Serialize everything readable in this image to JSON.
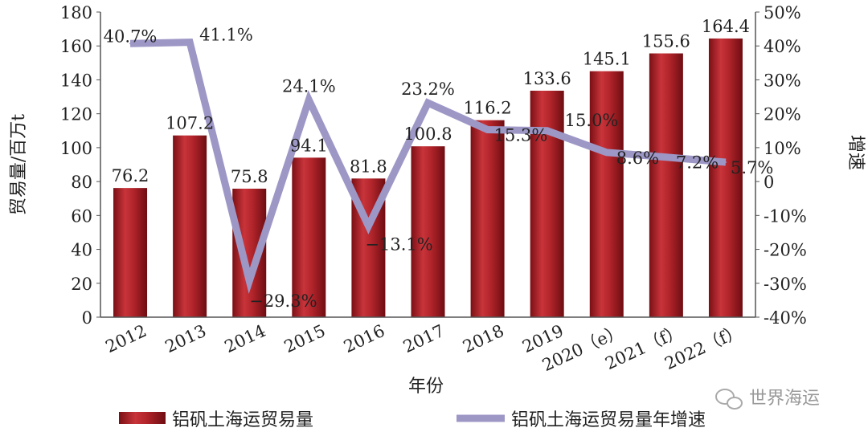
{
  "chart_data": {
    "type": "bar+line",
    "categories": [
      "2012",
      "2013",
      "2014",
      "2015",
      "2016",
      "2017",
      "2018",
      "2019",
      "2020（e）",
      "2021（f）",
      "2022（f）"
    ],
    "series": [
      {
        "name": "铝矾土海运贸易量",
        "type": "bar",
        "axis": "left",
        "color": "#b0242a",
        "values": [
          76.2,
          107.2,
          75.8,
          94.1,
          81.8,
          100.8,
          116.2,
          133.6,
          145.1,
          155.6,
          164.4
        ],
        "labels": [
          "76.2",
          "107.2",
          "75.8",
          "94.1",
          "81.8",
          "100.8",
          "116.2",
          "133.6",
          "145.1",
          "155.6",
          "164.4"
        ]
      },
      {
        "name": "铝矾土海运贸易量年增速",
        "type": "line",
        "axis": "right",
        "color": "#9d97c6",
        "values": [
          40.7,
          41.1,
          -29.3,
          24.1,
          -13.1,
          23.2,
          15.3,
          15.0,
          8.6,
          7.2,
          5.7
        ],
        "labels": [
          "40.7%",
          "41.1%",
          "−29.3%",
          "24.1%",
          "−13.1%",
          "23.2%",
          "15.3%",
          "15.0%",
          "8.6%",
          "7.2%",
          "5.7%"
        ]
      }
    ],
    "xlabel": "年份",
    "ylabel": "贸易量/百万t",
    "y2label": "增速",
    "ylim": [
      0,
      180
    ],
    "y_ticks": [
      "0",
      "20",
      "40",
      "60",
      "80",
      "100",
      "120",
      "140",
      "160",
      "180"
    ],
    "y2lim": [
      -40,
      50
    ],
    "y2_ticks": [
      "-40%",
      "-30%",
      "-20%",
      "-10%",
      "0",
      "10%",
      "20%",
      "30%",
      "40%",
      "50%"
    ],
    "grid": false,
    "legend_position": "bottom"
  },
  "watermark": "世界海运"
}
